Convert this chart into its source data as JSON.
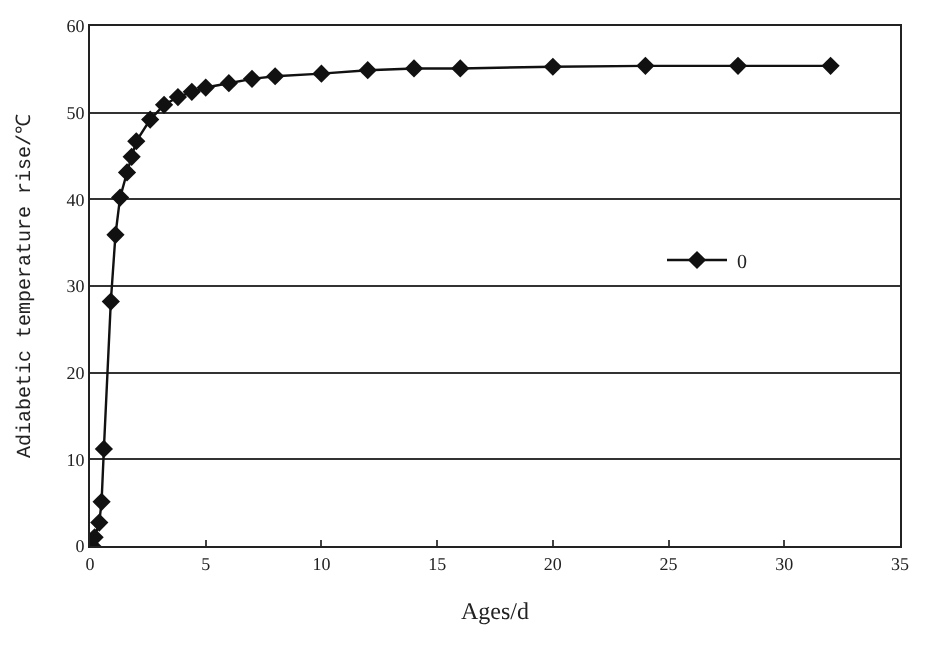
{
  "chart_data": {
    "type": "line",
    "xlabel": "Ages/d",
    "ylabel": "Adiabetic temperature rise/℃",
    "x": [
      0.1,
      0.2,
      0.4,
      0.5,
      0.6,
      0.9,
      1.1,
      1.3,
      1.6,
      1.8,
      2.0,
      2.6,
      3.2,
      3.8,
      4.4,
      5.0,
      6.0,
      7.0,
      8.0,
      10,
      12,
      14,
      16,
      20,
      24,
      28,
      32
    ],
    "series": [
      {
        "name": "0",
        "color": "#111111",
        "values": [
          0,
          1,
          2.7,
          5.1,
          11.2,
          28.2,
          35.9,
          40.2,
          43.1,
          44.9,
          46.7,
          49.2,
          50.9,
          51.8,
          52.4,
          52.9,
          53.4,
          53.9,
          54.2,
          54.5,
          54.9,
          55.1,
          55.1,
          55.3,
          55.4,
          55.4,
          55.4
        ]
      }
    ],
    "xlim": [
      0,
      35
    ],
    "xticks": [
      0,
      5,
      10,
      15,
      20,
      25,
      30,
      35
    ],
    "ylim": [
      0,
      60
    ],
    "yticks": [
      0,
      10,
      20,
      30,
      40,
      50,
      60
    ],
    "grid": "y",
    "legend": "right",
    "marker": "diamond",
    "line_style": "solid"
  }
}
